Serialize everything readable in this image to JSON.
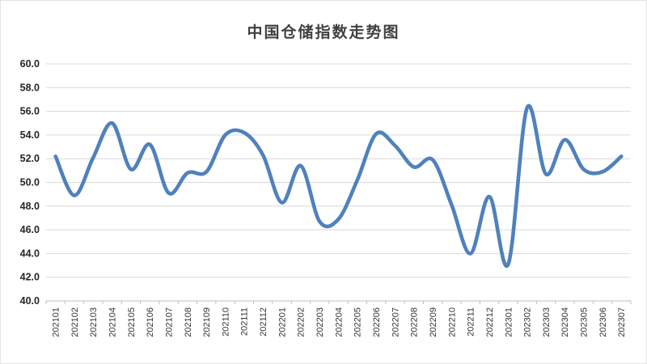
{
  "title": "中国仓储指数走势图",
  "colors": {
    "line": "#4F81BD",
    "grid": "#D9D9D9",
    "axis": "#BFBFBF",
    "tick": "#BFBFBF",
    "y_label": "#262626",
    "x_label": "#333333",
    "title_color": "#404040",
    "background": "#FFFFFF"
  },
  "chart_data": {
    "type": "line",
    "title": "中国仓储指数走势图",
    "xlabel": "",
    "ylabel": "",
    "legend": "none",
    "grid": "horizontal",
    "smooth": true,
    "ylim": [
      40.0,
      60.0
    ],
    "ytick_step": 2.0,
    "ytick_labels": [
      "60.0",
      "58.0",
      "56.0",
      "54.0",
      "52.0",
      "50.0",
      "48.0",
      "46.0",
      "44.0",
      "42.0",
      "40.0"
    ],
    "categories": [
      "202101",
      "202102",
      "202103",
      "202104",
      "202105",
      "202106",
      "202107",
      "202108",
      "202109",
      "202110",
      "202111",
      "202112",
      "202201",
      "202202",
      "202203",
      "202204",
      "202205",
      "202206",
      "202207",
      "202208",
      "202209",
      "202210",
      "202211",
      "202212",
      "202301",
      "202302",
      "202303",
      "202304",
      "202305",
      "202306",
      "202307"
    ],
    "values": [
      52.2,
      48.9,
      52.1,
      55.0,
      51.1,
      53.2,
      49.1,
      50.8,
      50.9,
      54.0,
      54.2,
      52.3,
      48.3,
      51.4,
      46.7,
      46.9,
      50.2,
      54.1,
      53.1,
      51.3,
      51.9,
      48.1,
      44.0,
      48.8,
      43.1,
      56.3,
      50.7,
      53.6,
      51.1,
      50.9,
      52.2
    ]
  }
}
